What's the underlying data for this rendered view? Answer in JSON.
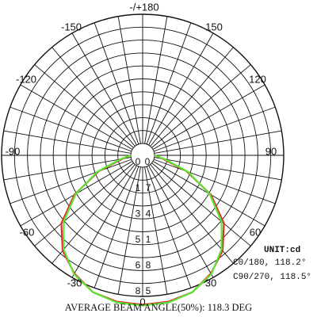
{
  "chart_data": {
    "type": "polar-line",
    "unit": "UNIT:cd",
    "angle_ticks": [
      {
        "angle": 0,
        "label": "0"
      },
      {
        "angle": 30,
        "label": "30"
      },
      {
        "angle": -30,
        "label": "-30"
      },
      {
        "angle": 60,
        "label": "60"
      },
      {
        "angle": -60,
        "label": "-60"
      },
      {
        "angle": 90,
        "label": "90"
      },
      {
        "angle": -90,
        "label": "-90"
      },
      {
        "angle": 120,
        "label": "120"
      },
      {
        "angle": -120,
        "label": "-120"
      },
      {
        "angle": 150,
        "label": "150"
      },
      {
        "angle": -150,
        "label": "-150"
      },
      {
        "angle": 180,
        "label": "-/+180"
      }
    ],
    "radial_ticks": [
      {
        "value": 0,
        "label": "0"
      },
      {
        "value": 17,
        "label": "17"
      },
      {
        "value": 34,
        "label": "34"
      },
      {
        "value": 51,
        "label": "51"
      },
      {
        "value": 68,
        "label": "68"
      },
      {
        "value": 85,
        "label": "85"
      }
    ],
    "r_max": 85,
    "series": [
      {
        "name": "C0/180, 118.2°",
        "color": "#e8262b",
        "points": [
          [
            0,
            90.5
          ],
          [
            10,
            90
          ],
          [
            20,
            88
          ],
          [
            30,
            82
          ],
          [
            40,
            74
          ],
          [
            50,
            62
          ],
          [
            60,
            44
          ],
          [
            70,
            23
          ],
          [
            80,
            6
          ],
          [
            90,
            0
          ]
        ]
      },
      {
        "name": "C90/270, 118.5°",
        "color": "#5be632",
        "points": [
          [
            0,
            91
          ],
          [
            10,
            90.5
          ],
          [
            20,
            88
          ],
          [
            30,
            82.5
          ],
          [
            40,
            73
          ],
          [
            50,
            60
          ],
          [
            60,
            43
          ],
          [
            70,
            24
          ],
          [
            80,
            7
          ],
          [
            90,
            0
          ]
        ]
      }
    ],
    "legend": [
      "C0/180, 118.2°",
      "C90/270, 118.5°"
    ],
    "footer": "AVERAGE BEAM ANGLE(50%): 118.3 DEG"
  }
}
